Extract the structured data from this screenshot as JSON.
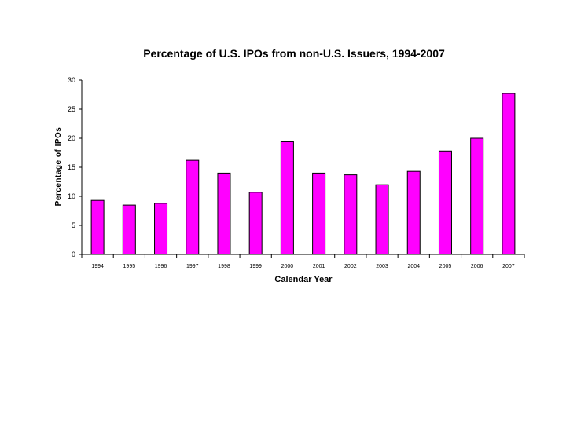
{
  "chart_data": {
    "type": "bar",
    "title": "Percentage of U.S. IPOs from non-U.S. Issuers, 1994-2007",
    "xlabel": "Calendar Year",
    "ylabel": "Percentage  of  IPOs",
    "categories": [
      "1994",
      "1995",
      "1996",
      "1997",
      "1998",
      "1999",
      "2000",
      "2001",
      "2002",
      "2003",
      "2004",
      "2005",
      "2006",
      "2007"
    ],
    "values": [
      9.3,
      8.5,
      8.8,
      16.2,
      14.0,
      10.7,
      19.4,
      14.0,
      13.7,
      12.0,
      14.3,
      17.8,
      20.0,
      27.7
    ],
    "ylim": [
      0,
      30
    ],
    "yticks": [
      0,
      5,
      10,
      15,
      20,
      25,
      30
    ],
    "grid": false,
    "legend": "none",
    "bar_color": "#ff00ff",
    "bar_stroke": "#000000"
  }
}
